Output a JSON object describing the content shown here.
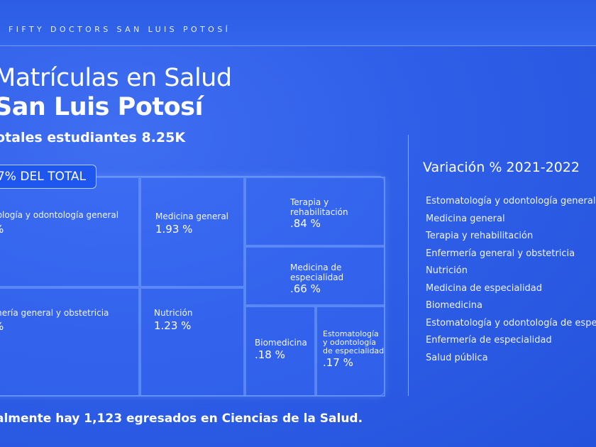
{
  "header": {
    "brand": "FIFTY DOCTORS SAN LUIS POTOSÍ"
  },
  "title": {
    "line1": "Matrículas en Salud",
    "line2": "San Luis Potosí"
  },
  "subtitle": "otales estudiantes 8.25K",
  "badge": {
    "label": "7% DEL TOTAL"
  },
  "treemap": {
    "cells": [
      {
        "label": "tología y odontología general",
        "value": "%"
      },
      {
        "label": "mería general y obstetricia",
        "value": "%"
      },
      {
        "label": "Medicina general",
        "value": "1.93 %"
      },
      {
        "label": "Nutrición",
        "value": "1.23 %"
      },
      {
        "label_lines": [
          "Terapia y",
          "rehabilitación"
        ],
        "value": ".84 %"
      },
      {
        "label_lines": [
          "Medicina de",
          "especialidad"
        ],
        "value": ".66 %"
      },
      {
        "label": "Biomedicina",
        "value": ".18 %"
      },
      {
        "label_lines": [
          "Estomatología",
          "y odontología",
          "de especialidad"
        ],
        "value": ".17 %"
      }
    ]
  },
  "variation": {
    "title": "Variación % 2021-2022",
    "items": [
      "Estomatología y odontología general",
      "Medicina general",
      "Terapia y rehabilitación",
      "Enfermería general y obstetricia",
      "Nutrición",
      "Medicina de especialidad",
      "Biomedicina",
      "Estomatología y odontología de especia",
      "Enfermería de especialidad",
      "Salud pública"
    ]
  },
  "footer": "almente hay 1,123 egresados en Ciencias de la Salud.",
  "colors": {
    "background": "#2f5fe8",
    "badge": "#1f56f0",
    "text": "#ffffff"
  }
}
